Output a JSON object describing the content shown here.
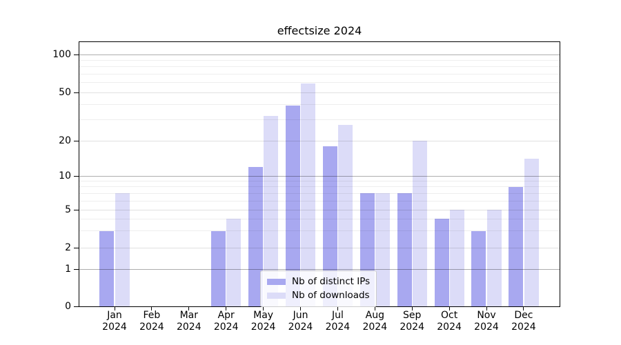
{
  "chart_data": {
    "type": "bar",
    "title": "effectsize 2024",
    "months": [
      "Jan",
      "Feb",
      "Mar",
      "Apr",
      "May",
      "Jun",
      "Jul",
      "Aug",
      "Sep",
      "Oct",
      "Nov",
      "Dec"
    ],
    "year_line": "2024",
    "categories": [
      "Jan 2024",
      "Feb 2024",
      "Mar 2024",
      "Apr 2024",
      "May 2024",
      "Jun 2024",
      "Jul 2024",
      "Aug 2024",
      "Sep 2024",
      "Oct 2024",
      "Nov 2024",
      "Dec 2024"
    ],
    "series": [
      {
        "name": "Nb of distinct IPs",
        "color": "#a8a8f0",
        "values": [
          3,
          0,
          0,
          3,
          12,
          39,
          18,
          7,
          7,
          4,
          3,
          8
        ]
      },
      {
        "name": "Nb of downloads",
        "color": "#dcdcf8",
        "values": [
          7,
          0,
          0,
          4,
          32,
          59,
          27,
          7,
          20,
          5,
          5,
          14
        ]
      }
    ],
    "xlabel": "",
    "ylabel": "",
    "y_axis_scale": "log-like with 0 baseline",
    "y_major_ticks": [
      0,
      1,
      2,
      5,
      10,
      20,
      50,
      100
    ],
    "y_minor_gridlines": [
      3,
      4,
      6,
      7,
      8,
      9,
      30,
      40,
      60,
      70,
      80,
      90
    ],
    "ylim": [
      0,
      130
    ],
    "grid": true,
    "legend_position": "lower center"
  }
}
